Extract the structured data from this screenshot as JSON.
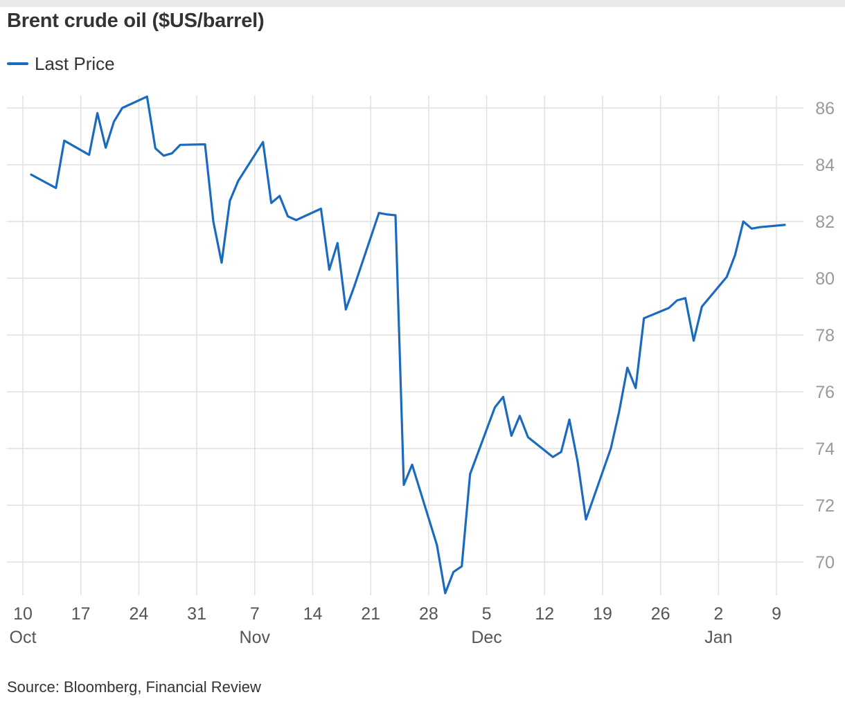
{
  "page": {
    "title": "Brent crude oil ($US/barrel)",
    "source": "Source: Bloomberg, Financial Review"
  },
  "chart_data": {
    "type": "line",
    "title": "Brent crude oil ($US/barrel)",
    "xlabel": "",
    "ylabel": "",
    "ylim": [
      68.9,
      86.5
    ],
    "y_ticks": [
      70,
      72,
      74,
      76,
      78,
      80,
      82,
      84,
      86
    ],
    "x_range": [
      "2023-10-10",
      "2024-01-10"
    ],
    "x_ticks": [
      {
        "date": "2023-10-10",
        "label": "10",
        "month": "Oct"
      },
      {
        "date": "2023-10-17",
        "label": "17",
        "month": ""
      },
      {
        "date": "2023-10-24",
        "label": "24",
        "month": ""
      },
      {
        "date": "2023-10-31",
        "label": "31",
        "month": ""
      },
      {
        "date": "2023-11-07",
        "label": "7",
        "month": "Nov"
      },
      {
        "date": "2023-11-14",
        "label": "14",
        "month": ""
      },
      {
        "date": "2023-11-21",
        "label": "21",
        "month": ""
      },
      {
        "date": "2023-11-28",
        "label": "28",
        "month": ""
      },
      {
        "date": "2023-12-05",
        "label": "5",
        "month": "Dec"
      },
      {
        "date": "2023-12-12",
        "label": "12",
        "month": ""
      },
      {
        "date": "2023-12-19",
        "label": "19",
        "month": ""
      },
      {
        "date": "2023-12-26",
        "label": "26",
        "month": ""
      },
      {
        "date": "2024-01-02",
        "label": "2",
        "month": "Jan"
      },
      {
        "date": "2024-01-09",
        "label": "9",
        "month": ""
      }
    ],
    "grid": true,
    "legend": "top-left",
    "colors": {
      "series": "#1a6bbf",
      "grid": "#e0e0e0",
      "tick_label": "#999999",
      "x_label": "#555555"
    },
    "series": [
      {
        "name": "Last Price",
        "x": [
          "2023-10-11",
          "2023-10-14",
          "2023-10-15",
          "2023-10-18",
          "2023-10-19",
          "2023-10-20",
          "2023-10-21",
          "2023-10-22",
          "2023-10-25",
          "2023-10-26",
          "2023-10-27",
          "2023-10-28",
          "2023-10-29",
          "2023-11-01",
          "2023-11-02",
          "2023-11-03",
          "2023-11-04",
          "2023-11-05",
          "2023-11-08",
          "2023-11-09",
          "2023-11-10",
          "2023-11-11",
          "2023-11-12",
          "2023-11-15",
          "2023-11-16",
          "2023-11-17",
          "2023-11-18",
          "2023-11-19",
          "2023-11-22",
          "2023-11-23",
          "2023-11-24",
          "2023-11-25",
          "2023-11-26",
          "2023-11-29",
          "2023-11-30",
          "2023-12-01",
          "2023-12-02",
          "2023-12-03",
          "2023-12-06",
          "2023-12-07",
          "2023-12-08",
          "2023-12-09",
          "2023-12-10",
          "2023-12-13",
          "2023-12-14",
          "2023-12-15",
          "2023-12-16",
          "2023-12-17",
          "2023-12-20",
          "2023-12-21",
          "2023-12-22",
          "2023-12-23",
          "2023-12-24",
          "2023-12-27",
          "2023-12-28",
          "2023-12-29",
          "2023-12-30",
          "2023-12-31",
          "2024-01-03",
          "2024-01-04",
          "2024-01-05",
          "2024-01-06",
          "2024-01-07",
          "2024-01-10"
        ],
        "values": [
          83.65,
          83.18,
          84.85,
          84.35,
          85.82,
          84.6,
          85.52,
          86.0,
          86.4,
          84.58,
          84.32,
          84.4,
          84.7,
          84.72,
          82.0,
          80.55,
          82.73,
          83.43,
          84.8,
          82.65,
          82.9,
          82.18,
          82.05,
          82.45,
          80.3,
          81.24,
          78.9,
          79.7,
          82.3,
          82.25,
          82.22,
          72.72,
          73.43,
          70.6,
          68.9,
          69.65,
          69.85,
          73.1,
          75.45,
          75.82,
          74.45,
          75.15,
          74.4,
          73.7,
          73.88,
          75.02,
          73.52,
          71.5,
          74.0,
          75.3,
          76.85,
          76.13,
          78.59,
          78.95,
          79.22,
          79.3,
          77.8,
          79.0,
          80.05,
          80.82,
          82.0,
          81.75,
          81.8,
          81.88
        ]
      }
    ]
  }
}
